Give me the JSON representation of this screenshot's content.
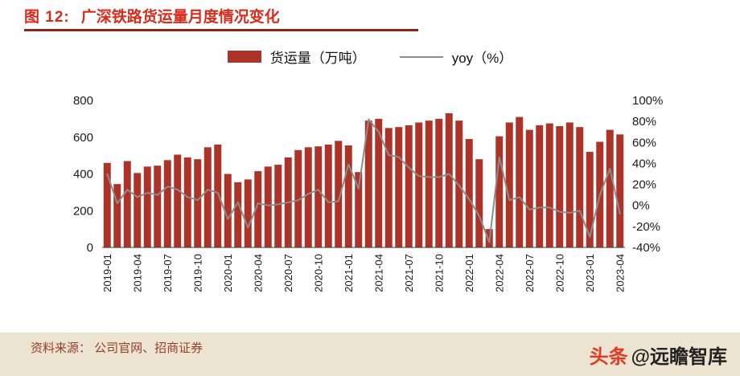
{
  "header": {
    "figure_label": "图 12:",
    "title": "广深铁路货运量月度情况变化"
  },
  "legend": {
    "bars_label": "货运量（万吨）",
    "line_label": "yoy（%）"
  },
  "chart_data": {
    "type": "bar",
    "title": "广深铁路货运量月度情况变化",
    "legend_position": "top",
    "grid": false,
    "categories": [
      "2019-01",
      "2019-02",
      "2019-03",
      "2019-04",
      "2019-05",
      "2019-06",
      "2019-07",
      "2019-08",
      "2019-09",
      "2019-10",
      "2019-11",
      "2019-12",
      "2020-01",
      "2020-02",
      "2020-03",
      "2020-04",
      "2020-05",
      "2020-06",
      "2020-07",
      "2020-08",
      "2020-09",
      "2020-10",
      "2020-11",
      "2020-12",
      "2021-01",
      "2021-02",
      "2021-03",
      "2021-04",
      "2021-05",
      "2021-06",
      "2021-07",
      "2021-08",
      "2021-09",
      "2021-10",
      "2021-11",
      "2021-12",
      "2022-01",
      "2022-02",
      "2022-03",
      "2022-04",
      "2022-05",
      "2022-06",
      "2022-07",
      "2022-08",
      "2022-09",
      "2022-10",
      "2022-11",
      "2022-12",
      "2023-01",
      "2023-02",
      "2023-03",
      "2023-04"
    ],
    "series": [
      {
        "name": "货运量（万吨）",
        "type": "bar",
        "axis": "left",
        "values": [
          460,
          345,
          470,
          405,
          440,
          445,
          475,
          505,
          490,
          480,
          545,
          560,
          400,
          355,
          370,
          415,
          440,
          450,
          490,
          530,
          545,
          550,
          560,
          580,
          555,
          410,
          690,
          700,
          650,
          655,
          665,
          680,
          690,
          700,
          730,
          690,
          590,
          480,
          100,
          605,
          680,
          710,
          640,
          665,
          675,
          660,
          680,
          655,
          520,
          575,
          640,
          615
        ]
      },
      {
        "name": "yoy（%）",
        "type": "line",
        "axis": "right",
        "values": [
          30,
          2,
          15,
          8,
          12,
          10,
          18,
          15,
          8,
          5,
          15,
          12,
          -13,
          3,
          -21,
          2,
          0,
          1,
          3,
          5,
          11,
          15,
          3,
          4,
          39,
          16,
          82,
          70,
          48,
          46,
          36,
          28,
          27,
          27,
          30,
          19,
          6,
          -10,
          -35,
          46,
          5,
          8,
          -4,
          -2,
          -2,
          -6,
          -7,
          -5,
          -30,
          10,
          35,
          -8
        ]
      }
    ],
    "y_axis": {
      "min": 0,
      "max": 800,
      "ticks": [
        0,
        200,
        400,
        600,
        800
      ]
    },
    "y2_axis": {
      "min": -40,
      "max": 100,
      "ticks": [
        -40,
        -20,
        0,
        20,
        40,
        60,
        80,
        100
      ],
      "suffix": "%"
    },
    "x_tick_every": 3
  },
  "footer": {
    "source": "资料来源： 公司官网、招商证券",
    "watermark_brand": "头条",
    "watermark_handle": "@远瞻智库"
  },
  "colors": {
    "bar": "#AB3328",
    "line": "#8C8C8C",
    "title_red": "#D92B1C",
    "underline": "#8E2318",
    "footer_bg": "#EDE3D1",
    "source_text": "#96402C",
    "watermark_brand": "#E33A24",
    "watermark_text": "#222222",
    "axis_text": "#1a1a1a"
  }
}
